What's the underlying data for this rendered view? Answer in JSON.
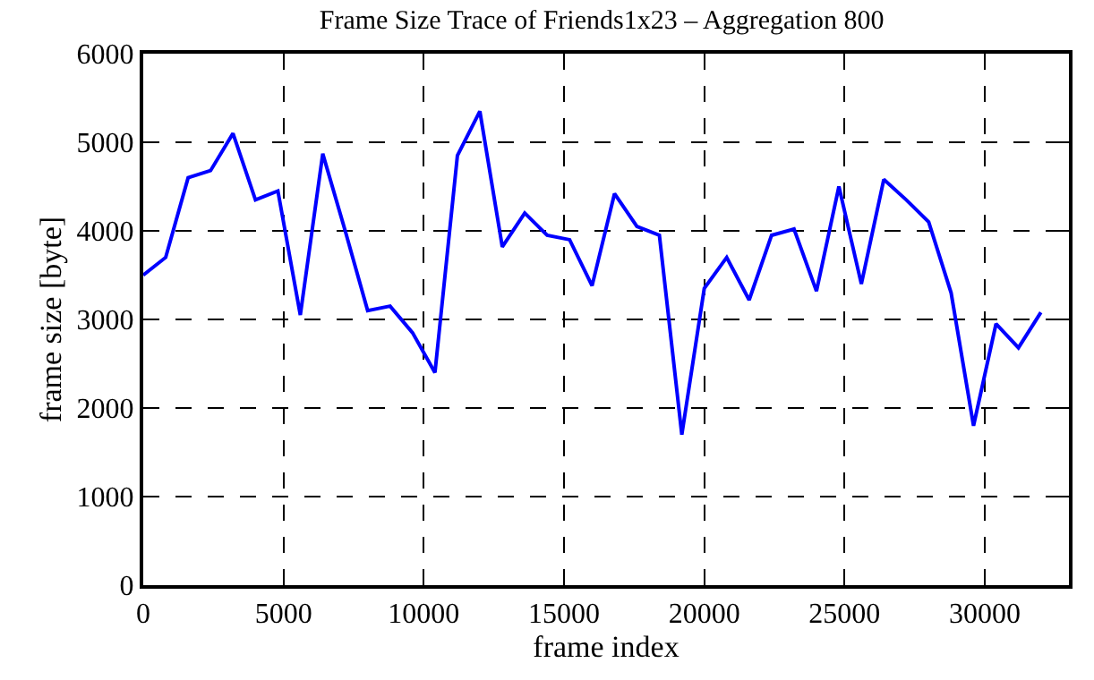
{
  "chart_data": {
    "type": "line",
    "title": "Frame Size Trace of Friends1x23 – Aggregation 800",
    "xlabel": "frame index",
    "ylabel": "frame size [byte]",
    "x": [
      0,
      800,
      1600,
      2400,
      3200,
      4000,
      4800,
      5600,
      6400,
      7200,
      8000,
      8800,
      9600,
      10400,
      11200,
      12000,
      12800,
      13600,
      14400,
      15200,
      16000,
      16800,
      17600,
      18400,
      19200,
      20000,
      20800,
      21600,
      22400,
      23200,
      24000,
      24800,
      25600,
      26400,
      27200,
      28000,
      28800,
      29600,
      30400,
      31200,
      32000
    ],
    "series": [
      {
        "color": "#0000ff",
        "values": [
          3500,
          3700,
          4600,
          4680,
          5100,
          4350,
          4450,
          3050,
          4870,
          4000,
          3100,
          3150,
          2850,
          2400,
          4850,
          5350,
          3820,
          4200,
          3950,
          3900,
          3380,
          4420,
          4050,
          3950,
          1700,
          3350,
          3700,
          3220,
          3950,
          4020,
          3320,
          4500,
          3400,
          4580,
          4350,
          4100,
          3300,
          1800,
          2950,
          2680,
          3080
        ]
      }
    ],
    "xlim": [
      0,
      33000
    ],
    "xticks": [
      0,
      5000,
      10000,
      15000,
      20000,
      25000,
      30000
    ],
    "ylim": [
      0,
      6000
    ],
    "yticks": [
      0,
      1000,
      2000,
      3000,
      4000,
      5000,
      6000
    ],
    "grid": true,
    "line_style": "solid",
    "marker": "none"
  }
}
